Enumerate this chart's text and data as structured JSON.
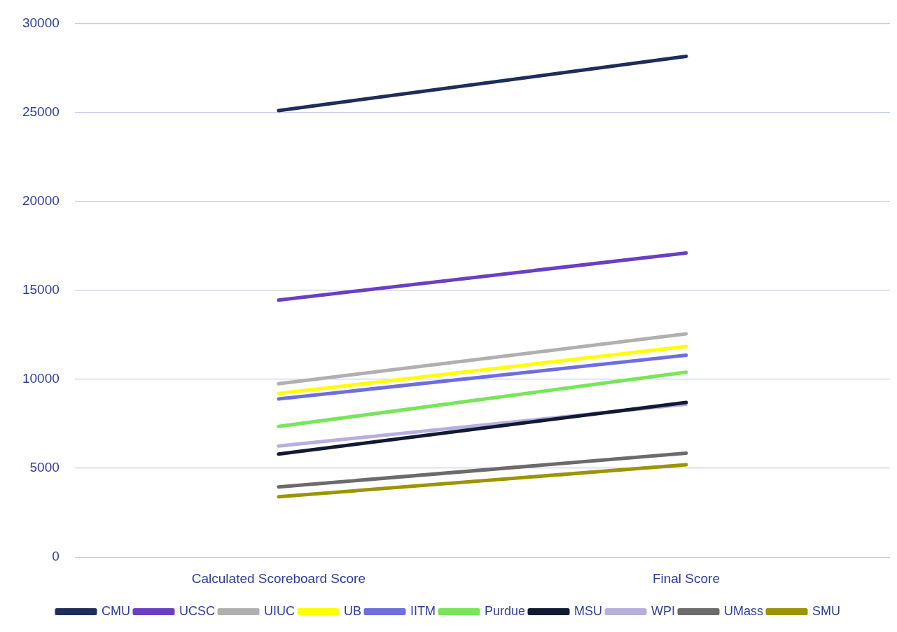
{
  "chart_data": {
    "type": "line",
    "categories": [
      "Calculated Scoreboard Score",
      "Final Score"
    ],
    "ylim": [
      0,
      30000
    ],
    "yticks": [
      0,
      5000,
      10000,
      15000,
      20000,
      25000,
      30000
    ],
    "grid": "y",
    "legend": "bottom",
    "marker": "none",
    "line_style": "solid",
    "series": [
      {
        "name": "CMU",
        "color": "#1f2d5a",
        "values": [
          25100,
          28150
        ]
      },
      {
        "name": "UCSC",
        "color": "#6a3fc4",
        "values": [
          14450,
          17100
        ]
      },
      {
        "name": "UIUC",
        "color": "#b0b0b0",
        "values": [
          9750,
          12550
        ]
      },
      {
        "name": "UB",
        "color": "#ffff00",
        "values": [
          9200,
          11850
        ]
      },
      {
        "name": "IITM",
        "color": "#6e6ee0",
        "values": [
          8900,
          11350
        ]
      },
      {
        "name": "Purdue",
        "color": "#77e65a",
        "values": [
          7350,
          10400
        ]
      },
      {
        "name": "MSU",
        "color": "#111a33",
        "values": [
          5800,
          8700
        ]
      },
      {
        "name": "WPI",
        "color": "#b8aee0",
        "values": [
          6250,
          8600
        ]
      },
      {
        "name": "UMass",
        "color": "#6b6b6b",
        "values": [
          3950,
          5850
        ]
      },
      {
        "name": "SMU",
        "color": "#9c9400",
        "values": [
          3400,
          5200
        ]
      }
    ]
  }
}
